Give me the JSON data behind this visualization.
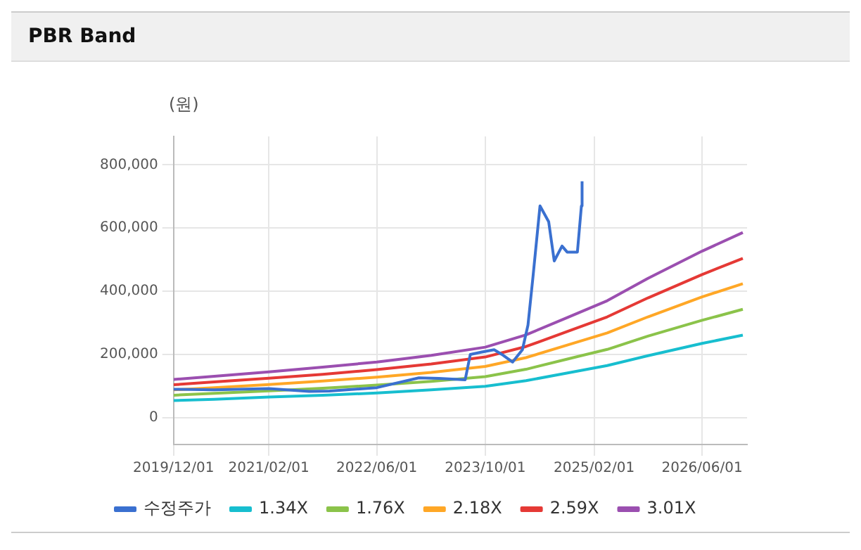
{
  "chart_data": {
    "type": "line",
    "title": "PBR Band",
    "ylabel": "(원)",
    "xlim": [
      "2019-12-01",
      "2026-12-20"
    ],
    "xticks": [
      {
        "value": "2019-12-01",
        "label": "2019/12/01"
      },
      {
        "value": "2021-02-01",
        "label": "2021/02/01"
      },
      {
        "value": "2022-06-01",
        "label": "2022/06/01"
      },
      {
        "value": "2023-10-01",
        "label": "2023/10/01"
      },
      {
        "value": "2025-02-01",
        "label": "2025/02/01"
      },
      {
        "value": "2026-06-01",
        "label": "2026/06/01"
      }
    ],
    "ylim": [
      -85000,
      890000
    ],
    "yticks": [
      0,
      {
        "value": 200000,
        "label": "200,000"
      },
      {
        "value": 400000,
        "label": "400,000"
      },
      {
        "value": 600000,
        "label": "600,000"
      },
      {
        "value": 800000,
        "label": "800,000"
      }
    ],
    "grid": true,
    "legend": "bottom",
    "marker": "none",
    "line_style": "solid",
    "x": [
      "2019-12-01",
      "2020-06-01",
      "2021-02-01",
      "2021-10-01",
      "2022-06-01",
      "2023-02-01",
      "2023-10-01",
      "2024-04-01",
      "2024-10-01",
      "2025-04-01",
      "2025-10-01",
      "2026-06-01",
      "2026-12-01"
    ],
    "series": [
      {
        "name": "수정주가",
        "color": "#3a70d0",
        "x": [
          "2019-12-01",
          "2020-06-01",
          "2021-02-01",
          "2021-08-01",
          "2021-11-01",
          "2022-06-01",
          "2022-12-07",
          "2023-03-07",
          "2023-07-03",
          "2023-07-26",
          "2023-09-12",
          "2023-11-10",
          "2023-12-15",
          "2024-02-01",
          "2024-03-16",
          "2024-04-10",
          "2024-05-03",
          "2024-06-03",
          "2024-07-12",
          "2024-08-06",
          "2024-09-10",
          "2024-10-03",
          "2024-11-18",
          "2024-12-06",
          "2024-12-09"
        ],
        "values": [
          90000,
          88000,
          92000,
          83000,
          84000,
          95000,
          126000,
          124000,
          120000,
          200000,
          207000,
          215000,
          200000,
          176000,
          215000,
          293000,
          449000,
          670000,
          620000,
          496000,
          543000,
          524000,
          524000,
          670000,
          748000
        ]
      },
      {
        "name": "1.34X",
        "color": "#17becf",
        "values": [
          54000,
          58000,
          65000,
          71000,
          78000,
          88000,
          99000,
          117000,
          141000,
          165000,
          196000,
          235000,
          261000
        ]
      },
      {
        "name": "1.76X",
        "color": "#8bc34a",
        "values": [
          71000,
          77000,
          85000,
          93000,
          103000,
          115000,
          130000,
          153000,
          185000,
          216000,
          258000,
          308000,
          343000
        ]
      },
      {
        "name": "2.18X",
        "color": "#ffa726",
        "values": [
          88000,
          95000,
          105000,
          116000,
          128000,
          143000,
          162000,
          190000,
          229000,
          268000,
          319000,
          382000,
          424000
        ]
      },
      {
        "name": "2.59X",
        "color": "#e53935",
        "values": [
          104000,
          113000,
          125000,
          137000,
          152000,
          170000,
          192000,
          225000,
          272000,
          319000,
          379000,
          453000,
          504000
        ]
      },
      {
        "name": "3.01X",
        "color": "#9b4fb0",
        "values": [
          121000,
          131000,
          145000,
          160000,
          176000,
          197000,
          223000,
          262000,
          316000,
          370000,
          441000,
          527000,
          586000
        ]
      }
    ]
  }
}
